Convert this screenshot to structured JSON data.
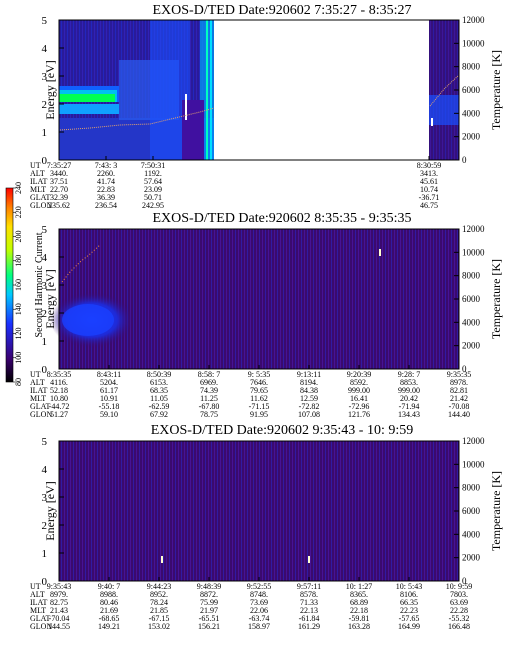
{
  "colors": {
    "background_low": "#3a0a6e",
    "band_blue": "#1040ff",
    "band_cyan": "#00e0e0",
    "band_green": "#00ff40",
    "cbar_stops": [
      "#000000",
      "#3a0070",
      "#1a30ff",
      "#00c8ff",
      "#00ff80",
      "#c0ff00",
      "#ffe000",
      "#ff8000",
      "#ff0000"
    ]
  },
  "colorbar": {
    "label": "Second Harmonic Current",
    "ticks": [
      "80",
      "100",
      "120",
      "140",
      "160",
      "180",
      "200",
      "220",
      "240"
    ]
  },
  "chart_data": [
    {
      "type": "heatmap",
      "title": "EXOS-D/TED   Date:920602   7:35:27 - 8:35:27",
      "ylabel": "Energy [eV]",
      "ylabel2": "Temperature [K]",
      "ylim": [
        0,
        5
      ],
      "y2lim": [
        0,
        12000
      ],
      "yticks": [
        "0",
        "1",
        "2",
        "3",
        "4",
        "5"
      ],
      "y2ticks": [
        "0",
        "2000",
        "4000",
        "6000",
        "8000",
        "10000",
        "12000"
      ],
      "data_gap": [
        "7:53:00",
        "8:30:59"
      ],
      "table": {
        "rows": [
          "UT",
          "ALT",
          "ILAT",
          "MLT",
          "GLAT",
          "GLON"
        ],
        "columns": [
          [
            "7:35:27",
            "3440.",
            "37.51",
            "22.70",
            "32.39",
            "235.62"
          ],
          [
            "7:43: 3",
            "2260.",
            "41.74",
            "22.83",
            "36.39",
            "236.54"
          ],
          [
            "7:50:31",
            "1192.",
            "57.64",
            "23.09",
            "50.71",
            "242.95"
          ],
          [
            "8:30:59",
            "3413.",
            "45.61",
            "10.74",
            "-36.71",
            "46.75"
          ]
        ]
      }
    },
    {
      "type": "heatmap",
      "title": "EXOS-D/TED   Date:920602   8:35:35 - 9:35:35",
      "ylabel": "Energy [eV]",
      "ylabel2": "Temperature [K]",
      "ylim": [
        0,
        5
      ],
      "y2lim": [
        0,
        12000
      ],
      "yticks": [
        "0",
        "1",
        "2",
        "3",
        "4",
        "5"
      ],
      "y2ticks": [
        "0",
        "2000",
        "4000",
        "6000",
        "8000",
        "10000",
        "12000"
      ],
      "table": {
        "rows": [
          "UT",
          "ALT",
          "ILAT",
          "MLT",
          "GLAT",
          "GLON"
        ],
        "columns": [
          [
            "8:35:35",
            "4116.",
            "52.18",
            "10.80",
            "-44.72",
            "51.27"
          ],
          [
            "8:43:11",
            "5204.",
            "61.17",
            "10.91",
            "-55.18",
            "59.10"
          ],
          [
            "8:50:39",
            "6153.",
            "68.35",
            "11.05",
            "-62.59",
            "67.92"
          ],
          [
            "8:58: 7",
            "6969.",
            "74.39",
            "11.25",
            "-67.80",
            "78.75"
          ],
          [
            "9: 5:35",
            "7646.",
            "79.65",
            "11.62",
            "-71.15",
            "91.95"
          ],
          [
            "9:13:11",
            "8194.",
            "84.38",
            "12.59",
            "-72.82",
            "107.08"
          ],
          [
            "9:20:39",
            "8592.",
            "999.00",
            "16.41",
            "-72.96",
            "121.76"
          ],
          [
            "9:28: 7",
            "8853.",
            "999.00",
            "20.42",
            "-71.94",
            "134.43"
          ],
          [
            "9:35:35",
            "8978.",
            "82.81",
            "21.42",
            "-70.08",
            "144.40"
          ]
        ]
      }
    },
    {
      "type": "heatmap",
      "title": "EXOS-D/TED   Date:920602   9:35:43 - 10: 9:59",
      "ylabel": "Energy [eV]",
      "ylabel2": "Temperature [K]",
      "ylim": [
        0,
        5
      ],
      "y2lim": [
        0,
        12000
      ],
      "yticks": [
        "0",
        "1",
        "2",
        "3",
        "4",
        "5"
      ],
      "y2ticks": [
        "0",
        "2000",
        "4000",
        "6000",
        "8000",
        "10000",
        "12000"
      ],
      "table": {
        "rows": [
          "UT",
          "ALT",
          "ILAT",
          "MLT",
          "GLAT",
          "GLON"
        ],
        "columns": [
          [
            "9:35:43",
            "8979.",
            "82.75",
            "21.43",
            "-70.04",
            "144.55"
          ],
          [
            "9:40: 7",
            "8988.",
            "80.46",
            "21.69",
            "-68.65",
            "149.21"
          ],
          [
            "9:44:23",
            "8952.",
            "78.24",
            "21.85",
            "-67.15",
            "153.02"
          ],
          [
            "9:48:39",
            "8872.",
            "75.99",
            "21.97",
            "-65.51",
            "156.21"
          ],
          [
            "9:52:55",
            "8748.",
            "73.69",
            "22.06",
            "-63.74",
            "158.97"
          ],
          [
            "9:57:11",
            "8578.",
            "71.33",
            "22.13",
            "-61.84",
            "161.29"
          ],
          [
            "10: 1:27",
            "8365.",
            "68.89",
            "22.18",
            "-59.81",
            "163.28"
          ],
          [
            "10: 5:43",
            "8106.",
            "66.35",
            "22.23",
            "-57.65",
            "164.99"
          ],
          [
            "10: 9:59",
            "7803.",
            "63.69",
            "22.28",
            "-55.32",
            "166.48"
          ]
        ]
      }
    }
  ]
}
